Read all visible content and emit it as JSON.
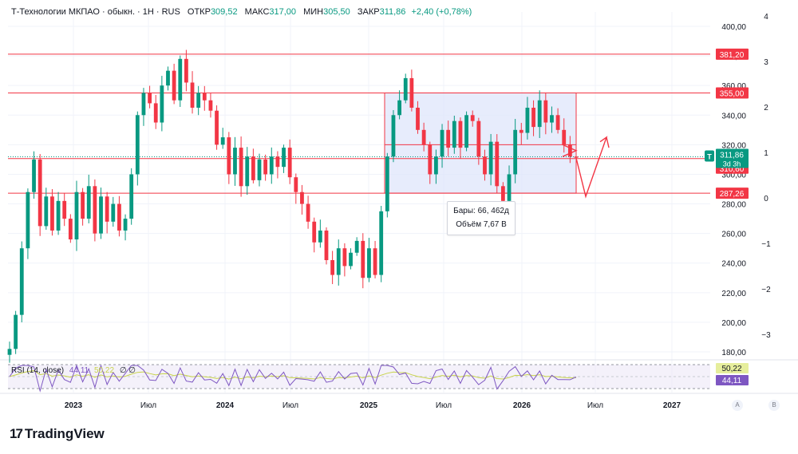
{
  "header": {
    "title": "Т-Технологии МКПАО · обыкн. · 1Н · RUS",
    "open_label": "ОТКР",
    "open_value": "309,52",
    "high_label": "МАКС",
    "high_value": "317,00",
    "low_label": "МИН",
    "low_value": "305,50",
    "close_label": "ЗАКР",
    "close_value": "311,86",
    "change": "+2,40 (+0,78%)"
  },
  "rsi_legend": {
    "name": "RSI (14, close)",
    "rsi": "44,11",
    "ma": "50,22",
    "extra": "∅ ∅"
  },
  "price_axis": [
    "400,00",
    "380,00",
    "360,00",
    "340,00",
    "320,00",
    "300,00",
    "280,00",
    "260,00",
    "240,00",
    "220,00",
    "200,00",
    "180,00"
  ],
  "pct_axis": [
    "4",
    "3",
    "2",
    "1",
    "0",
    "−1",
    "−2",
    "−3"
  ],
  "time_axis": [
    "2023",
    "Июл",
    "2024",
    "Июл",
    "2025",
    "Июл",
    "2026",
    "Июл",
    "2027"
  ],
  "price_labels": {
    "level_top": "381,20",
    "level_box": "355,00",
    "last": "311,86",
    "countdown": "3d 3h",
    "level_mid": "310,60",
    "level_low": "287,26",
    "ticker_badge": "T"
  },
  "rsi_labels": {
    "ma": "50,22",
    "rsi": "44,11"
  },
  "tooltip": {
    "line1": "Бары: 66, 462д",
    "line2": "Объём 7,67 B"
  },
  "scale_buttons": {
    "auto": "A",
    "mode": "B"
  },
  "brand": {
    "name": "TradingView",
    "mark": "17"
  },
  "colors": {
    "up": "#089981",
    "down": "#f23645",
    "level": "#f23645",
    "box_fill": "#dfe6fb",
    "box_border": "#f23645",
    "rsi": "#7e57c2",
    "rsi_ma": "#c8d34a"
  },
  "chart_data": {
    "type": "candlestick",
    "y_range": [
      170,
      410
    ],
    "levels": [
      381.2,
      355,
      310.6,
      287.26
    ],
    "last_price": 311.86,
    "closes": [
      182,
      205,
      250,
      288,
      310,
      265,
      285,
      262,
      282,
      270,
      256,
      288,
      270,
      292,
      260,
      285,
      268,
      280,
      262,
      270,
      300,
      340,
      355,
      348,
      335,
      360,
      370,
      350,
      378,
      362,
      345,
      355,
      350,
      343,
      320,
      325,
      300,
      318,
      292,
      312,
      296,
      310,
      300,
      312,
      305,
      318,
      298,
      288,
      280,
      268,
      254,
      262,
      242,
      232,
      250,
      238,
      247,
      255,
      230,
      250,
      232,
      275,
      312,
      340,
      350,
      365,
      345,
      330,
      320,
      300,
      312,
      330,
      318,
      336,
      318,
      340,
      336,
      312,
      300,
      322,
      292,
      282,
      300,
      330,
      328,
      345,
      332,
      350,
      335,
      340,
      330,
      320,
      312,
      311.86
    ]
  }
}
